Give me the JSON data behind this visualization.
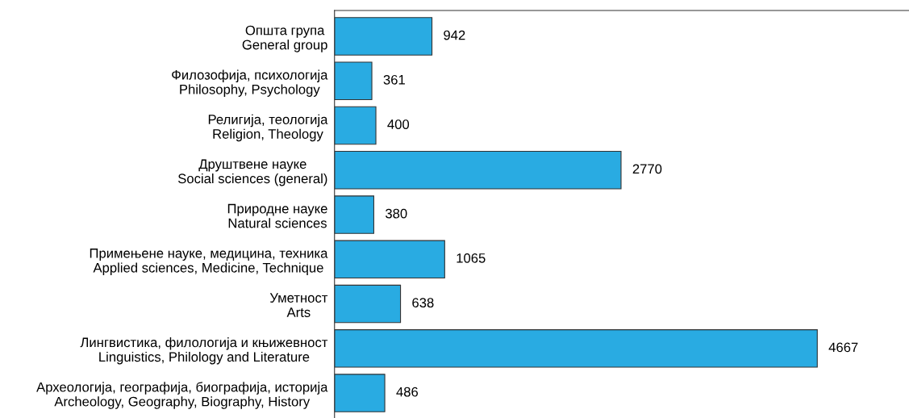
{
  "chart_data": {
    "type": "bar",
    "orientation": "horizontal",
    "categories": [
      "Општа група\nGeneral group",
      "Филозофија, психологија\nPhilosophy, Psychology",
      "Религија, теологија\nReligion, Theology",
      "Друштвене науке\nSocial sciences (general)",
      "Природне науке\nNatural sciences",
      "Примењене науке, медицина, техника\nApplied sciences, Medicine, Technique",
      "Уметност\nArts",
      "Лингвистика, филологија и књижевност\nLinguistics, Philology and Literature",
      "Археологија, географија, биографија, историја\nArcheology, Geography, Biography, History"
    ],
    "values": [
      942,
      361,
      400,
      2770,
      380,
      1065,
      638,
      4667,
      486
    ],
    "color": "#29abe2",
    "data_labels": true,
    "grid": false,
    "legend": false,
    "tick_labels": "y"
  }
}
